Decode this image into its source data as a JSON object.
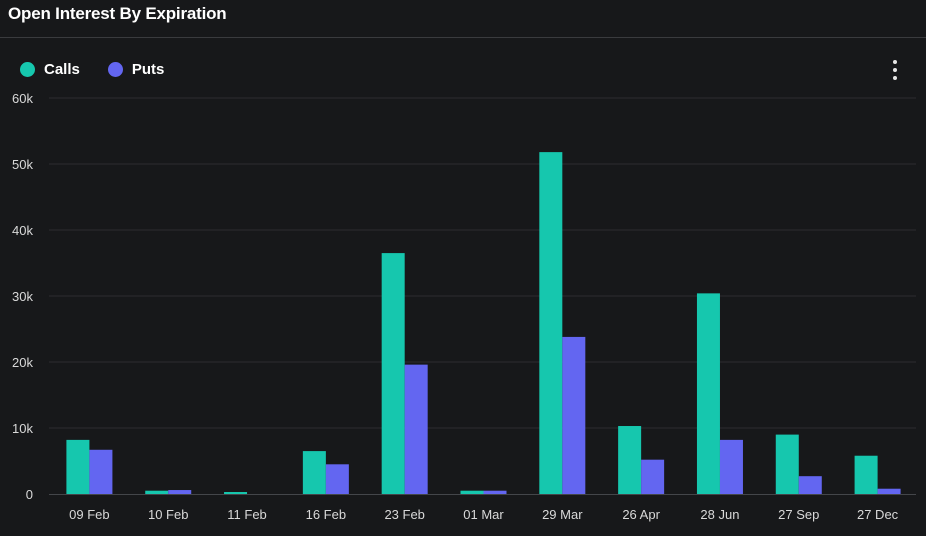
{
  "title": "Open Interest By Expiration",
  "legend": {
    "calls_label": "Calls",
    "puts_label": "Puts"
  },
  "menu": {
    "icon": "more-vertical-icon"
  },
  "colors": {
    "calls": "#16c7ae",
    "puts": "#6366f1",
    "grid": "#2c2d30",
    "background": "#17181a"
  },
  "chart_data": {
    "type": "bar",
    "categories": [
      "09 Feb",
      "10 Feb",
      "11 Feb",
      "16 Feb",
      "23 Feb",
      "01 Mar",
      "29 Mar",
      "26 Apr",
      "28 Jun",
      "27 Sep",
      "27 Dec"
    ],
    "series": [
      {
        "name": "Calls",
        "values": [
          8200,
          500,
          300,
          6500,
          36500,
          500,
          51800,
          10300,
          30400,
          9000,
          5800
        ]
      },
      {
        "name": "Puts",
        "values": [
          6700,
          600,
          0,
          4500,
          19600,
          500,
          23800,
          5200,
          8200,
          2700,
          800
        ]
      }
    ],
    "ylim": [
      0,
      60000
    ],
    "yticks": [
      0,
      10000,
      20000,
      30000,
      40000,
      50000,
      60000
    ],
    "ytick_labels": [
      "0",
      "10k",
      "20k",
      "30k",
      "40k",
      "50k",
      "60k"
    ],
    "grid": true,
    "legend_position": "top-left"
  }
}
